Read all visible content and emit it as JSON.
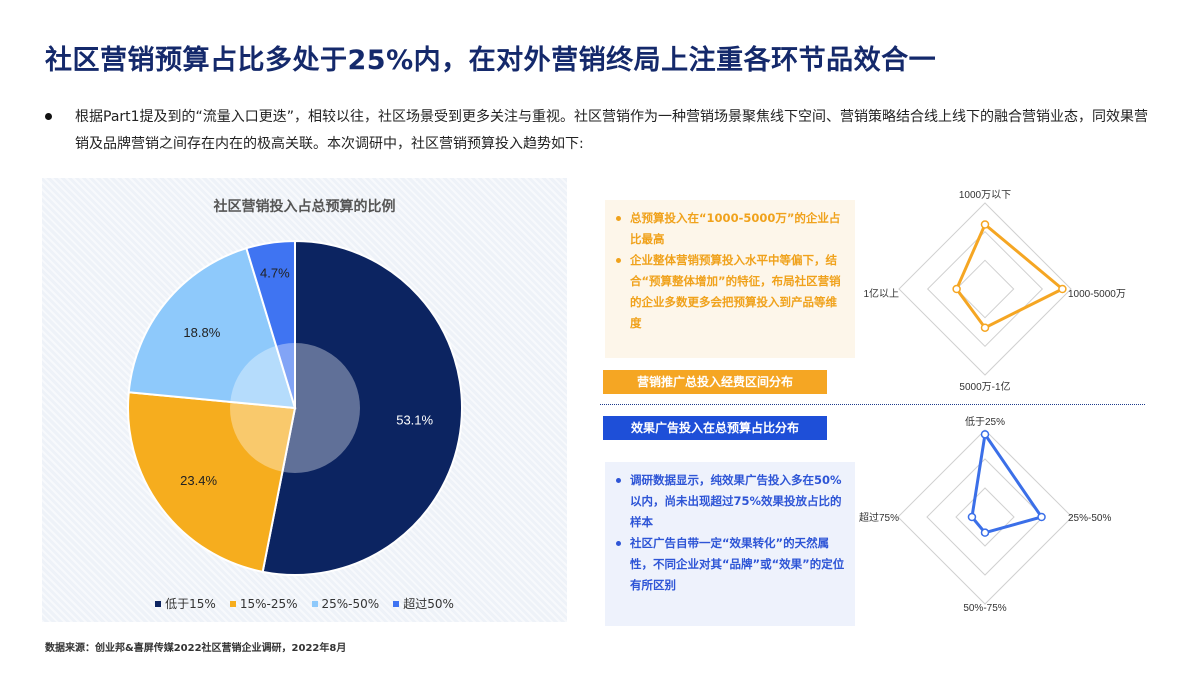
{
  "page": {
    "title": "社区营销预算占比多处于25%内，在对外营销终局上注重各环节品效合一",
    "intro": "根据Part1提及到的“流量入口更迭”，相较以往，社区场景受到更多关注与重视。社区营销作为一种营销场景聚焦线下空间、营销策略结合线上线下的融合营销业态，同效果营销及品牌营销之间存在内在的极高关联。本次调研中，社区营销预算投入趋势如下:",
    "source": "数据来源：创业邦&喜屏传媒2022社区营销企业调研，2022年8月"
  },
  "orange_box": {
    "bullets": [
      "总预算投入在“1000-5000万”的企业占比最高",
      "企业整体营销预算投入水平中等偏下，结合“预算整体增加”的特征，布局社区营销的企业多数更多会把预算投入到产品等维度"
    ],
    "banner": "营销推广总投入经费区间分布"
  },
  "blue_box": {
    "banner": "效果广告投入在总预算占比分布",
    "bullets": [
      "调研数据显示，纯效果广告投入多在50%以内，尚未出现超过75%效果投放占比的样本",
      "社区广告自带一定“效果转化”的天然属性，不同企业对其“品牌”或“效果”的定位有所区别"
    ]
  },
  "chart_data": [
    {
      "type": "pie",
      "title": "社区营销投入占总预算的比例",
      "categories": [
        "低于15%",
        "15%-25%",
        "25%-50%",
        "超过50%"
      ],
      "values": [
        53.1,
        23.4,
        18.8,
        4.7
      ],
      "labels": [
        "53.1%",
        "23.4%",
        "18.8%",
        "4.7%"
      ],
      "colors": [
        "#0c2461",
        "#f6ad1e",
        "#8ec9fb",
        "#3f74f2"
      ],
      "legend": "bottom"
    },
    {
      "type": "radar",
      "axes": [
        "1000万以下",
        "1000-5000万",
        "5000万-1亿",
        "1亿以上"
      ],
      "values": [
        0.75,
        0.9,
        0.45,
        0.33
      ],
      "rings": 3,
      "color": "#f5a623"
    },
    {
      "type": "radar",
      "axes": [
        "低于25%",
        "25%-50%",
        "50%-75%",
        "超过75%"
      ],
      "values": [
        0.95,
        0.65,
        0.18,
        0.15
      ],
      "rings": 3,
      "color": "#3b6fe8"
    }
  ]
}
